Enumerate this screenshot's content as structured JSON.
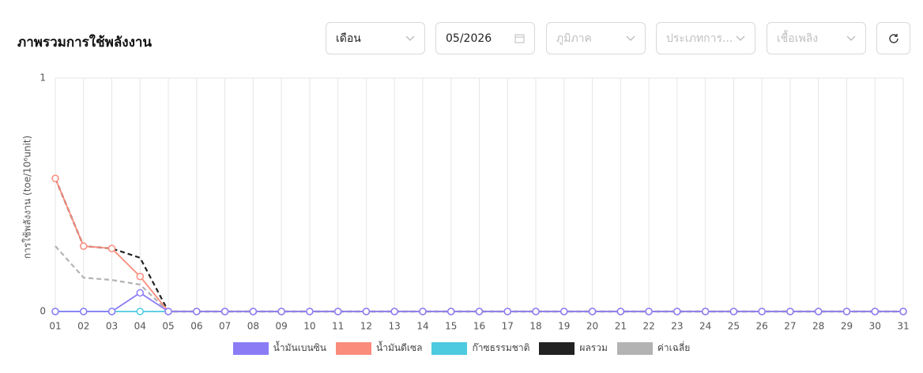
{
  "header": {
    "title": "ภาพรวมการใช้พลังงาน"
  },
  "filters": {
    "period": "เดือน",
    "date": "05/2026",
    "region": "ภูมิภาค",
    "category": "ประเภทการ...",
    "fuel": "เชื้อเพลิง"
  },
  "chart_data": {
    "type": "line",
    "y_label": "การใช้พลังงาน (toe/10⁶unit)",
    "categories": [
      "01",
      "02",
      "03",
      "04",
      "05",
      "06",
      "07",
      "08",
      "09",
      "10",
      "11",
      "12",
      "13",
      "14",
      "15",
      "16",
      "17",
      "18",
      "19",
      "20",
      "21",
      "22",
      "23",
      "24",
      "25",
      "26",
      "27",
      "28",
      "29",
      "30",
      "31"
    ],
    "ylim": [
      0,
      1
    ],
    "yticks": [
      0,
      1
    ],
    "grid": true,
    "legend": "bottom",
    "series": [
      {
        "name": "น้ำมันเบนซิน",
        "color": "#8b7cf6",
        "dashed": false,
        "markers": true,
        "values": [
          0,
          0,
          0,
          0.08,
          0,
          0,
          0,
          0,
          0,
          0,
          0,
          0,
          0,
          0,
          0,
          0,
          0,
          0,
          0,
          0,
          0,
          0,
          0,
          0,
          0,
          0,
          0,
          0,
          0,
          0,
          0
        ]
      },
      {
        "name": "น้ำมันดีเซล",
        "color": "#fa8c7c",
        "dashed": false,
        "markers": true,
        "values": [
          0.57,
          0.28,
          0.27,
          0.15,
          0,
          0,
          0,
          0,
          0,
          0,
          0,
          0,
          0,
          0,
          0,
          0,
          0,
          0,
          0,
          0,
          0,
          0,
          0,
          0,
          0,
          0,
          0,
          0,
          0,
          0,
          0
        ]
      },
      {
        "name": "ก๊าซธรรมชาติ",
        "color": "#4dc9e0",
        "dashed": false,
        "markers": true,
        "values": [
          0,
          0,
          0,
          0,
          0,
          0,
          0,
          0,
          0,
          0,
          0,
          0,
          0,
          0,
          0,
          0,
          0,
          0,
          0,
          0,
          0,
          0,
          0,
          0,
          0,
          0,
          0,
          0,
          0,
          0,
          0
        ]
      },
      {
        "name": "ผลรวม",
        "color": "#222222",
        "dashed": true,
        "markers": false,
        "values": [
          0.57,
          0.28,
          0.27,
          0.23,
          0,
          0,
          0,
          0,
          0,
          0,
          0,
          0,
          0,
          0,
          0,
          0,
          0,
          0,
          0,
          0,
          0,
          0,
          0,
          0,
          0,
          0,
          0,
          0,
          0,
          0,
          0
        ]
      },
      {
        "name": "ค่าเฉลี่ย",
        "color": "#b3b3b3",
        "dashed": true,
        "markers": false,
        "values": [
          0.28,
          0.145,
          0.135,
          0.115,
          0,
          0,
          0,
          0,
          0,
          0,
          0,
          0,
          0,
          0,
          0,
          0,
          0,
          0,
          0,
          0,
          0,
          0,
          0,
          0,
          0,
          0,
          0,
          0,
          0,
          0,
          0
        ]
      }
    ]
  }
}
